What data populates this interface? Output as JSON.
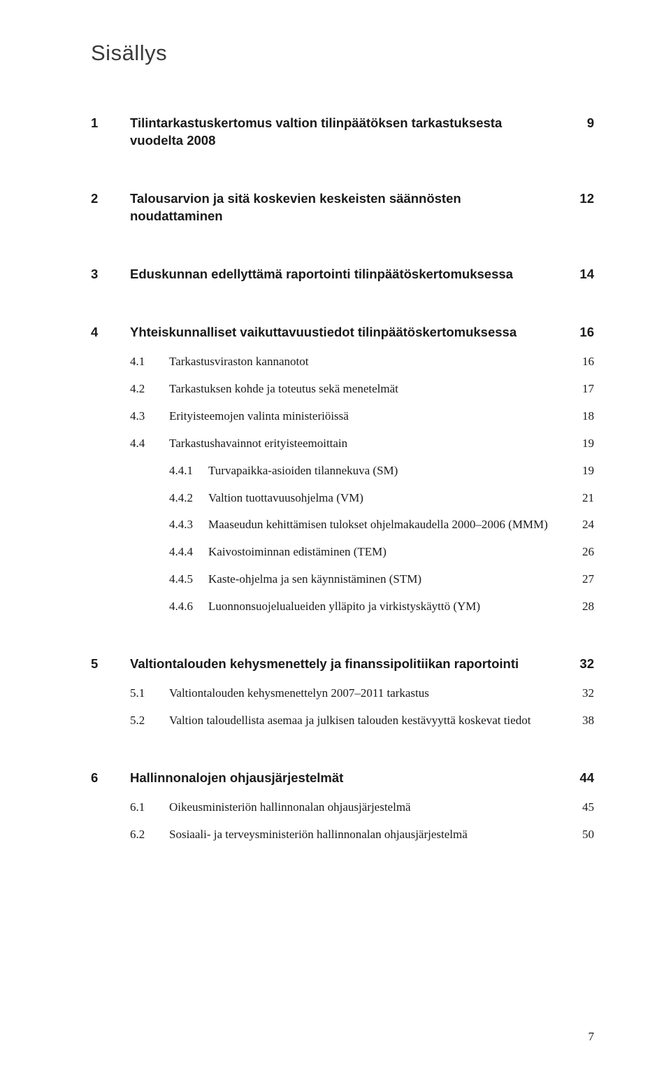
{
  "title": "Sisällys",
  "page_number": "7",
  "chapters": [
    {
      "num": "1",
      "label": "Tilintarkastuskertomus valtion tilinpäätöksen tarkastuksesta vuodelta 2008",
      "page": "9",
      "sub": []
    },
    {
      "num": "2",
      "label": "Talousarvion ja sitä koskevien keskeisten säännösten noudattaminen",
      "page": "12",
      "sub": []
    },
    {
      "num": "3",
      "label": "Eduskunnan edellyttämä raportointi tilinpäätöskertomuksessa",
      "page": "14",
      "sub": []
    },
    {
      "num": "4",
      "label": "Yhteiskunnalliset vaikuttavuustiedot tilinpäätöskertomuksessa",
      "page": "16",
      "sub": [
        {
          "num": "4.1",
          "label": "Tarkastusviraston kannanotot",
          "page": "16",
          "sub": []
        },
        {
          "num": "4.2",
          "label": "Tarkastuksen kohde ja toteutus sekä menetelmät",
          "page": "17",
          "sub": []
        },
        {
          "num": "4.3",
          "label": "Erityisteemojen valinta ministeriöissä",
          "page": "18",
          "sub": []
        },
        {
          "num": "4.4",
          "label": "Tarkastushavainnot erityisteemoittain",
          "page": "19",
          "sub": [
            {
              "num": "4.4.1",
              "label": "Turvapaikka-asioiden tilannekuva (SM)",
              "page": "19"
            },
            {
              "num": "4.4.2",
              "label": "Valtion tuottavuusohjelma (VM)",
              "page": "21"
            },
            {
              "num": "4.4.3",
              "label": "Maaseudun kehittämisen tulokset ohjelmakaudella 2000–2006 (MMM)",
              "page": "24"
            },
            {
              "num": "4.4.4",
              "label": "Kaivostoiminnan edistäminen (TEM)",
              "page": "26"
            },
            {
              "num": "4.4.5",
              "label": "Kaste-ohjelma ja sen käynnistäminen (STM)",
              "page": "27"
            },
            {
              "num": "4.4.6",
              "label": "Luonnonsuojelualueiden ylläpito ja virkistyskäyttö (YM)",
              "page": "28"
            }
          ]
        }
      ]
    },
    {
      "num": "5",
      "label": "Valtiontalouden kehysmenettely ja finanssipolitiikan raportointi",
      "page": "32",
      "sub": [
        {
          "num": "5.1",
          "label": "Valtiontalouden kehysmenettelyn 2007–2011 tarkastus",
          "page": "32",
          "sub": []
        },
        {
          "num": "5.2",
          "label": "Valtion taloudellista asemaa ja julkisen talouden kestävyyttä koskevat tiedot",
          "page": "38",
          "sub": []
        }
      ]
    },
    {
      "num": "6",
      "label": "Hallinnonalojen ohjausjärjestelmät",
      "page": "44",
      "sub": [
        {
          "num": "6.1",
          "label": "Oikeusministeriön hallinnonalan ohjausjärjestelmä",
          "page": "45",
          "sub": []
        },
        {
          "num": "6.2",
          "label": "Sosiaali- ja terveysministeriön hallinnonalan ohjausjärjestelmä",
          "page": "50",
          "sub": []
        }
      ]
    }
  ]
}
